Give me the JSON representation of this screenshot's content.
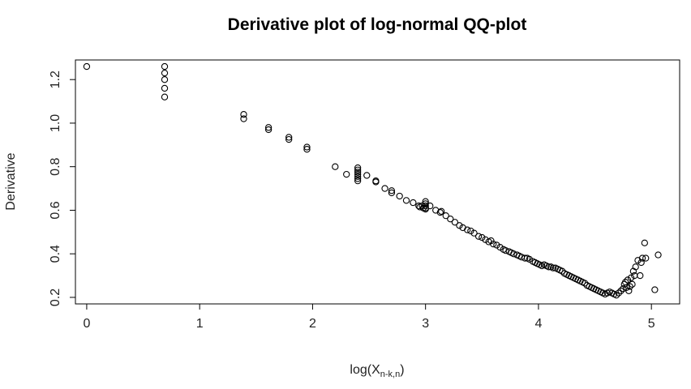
{
  "chart_data": {
    "type": "scatter",
    "title": "Derivative plot of log-normal QQ-plot",
    "xlabel": {
      "base": "log(X",
      "subscript": "n-k,n",
      "close": ")"
    },
    "ylabel": "Derivative",
    "xlim": [
      -0.1,
      5.25
    ],
    "ylim": [
      0.17,
      1.29
    ],
    "xticks": [
      0,
      1,
      2,
      3,
      4,
      5
    ],
    "yticks": [
      0.2,
      0.4,
      0.6,
      0.8,
      1.0,
      1.2
    ],
    "xtick_labels": [
      "0",
      "1",
      "2",
      "3",
      "4",
      "5"
    ],
    "ytick_labels": [
      "0.2",
      "0.4",
      "0.6",
      "0.8",
      "1.0",
      "1.2"
    ],
    "marker": "open-circle",
    "grid": false,
    "points": [
      [
        0.0,
        1.26
      ],
      [
        0.69,
        1.26
      ],
      [
        0.69,
        1.23
      ],
      [
        0.69,
        1.2
      ],
      [
        0.69,
        1.16
      ],
      [
        0.69,
        1.12
      ],
      [
        1.39,
        1.04
      ],
      [
        1.39,
        1.02
      ],
      [
        1.61,
        0.98
      ],
      [
        1.61,
        0.97
      ],
      [
        1.79,
        0.935
      ],
      [
        1.79,
        0.925
      ],
      [
        1.95,
        0.89
      ],
      [
        1.95,
        0.88
      ],
      [
        2.2,
        0.8
      ],
      [
        2.3,
        0.765
      ],
      [
        2.4,
        0.795
      ],
      [
        2.4,
        0.785
      ],
      [
        2.4,
        0.775
      ],
      [
        2.4,
        0.765
      ],
      [
        2.4,
        0.755
      ],
      [
        2.4,
        0.745
      ],
      [
        2.4,
        0.735
      ],
      [
        2.48,
        0.76
      ],
      [
        2.56,
        0.735
      ],
      [
        2.56,
        0.73
      ],
      [
        2.64,
        0.7
      ],
      [
        2.7,
        0.69
      ],
      [
        2.7,
        0.68
      ],
      [
        2.77,
        0.665
      ],
      [
        2.83,
        0.645
      ],
      [
        2.89,
        0.635
      ],
      [
        2.94,
        0.62
      ],
      [
        2.95,
        0.615
      ],
      [
        2.97,
        0.62
      ],
      [
        2.98,
        0.61
      ],
      [
        3.0,
        0.64
      ],
      [
        3.0,
        0.63
      ],
      [
        3.0,
        0.62
      ],
      [
        3.0,
        0.61
      ],
      [
        3.0,
        0.605
      ],
      [
        3.04,
        0.62
      ],
      [
        3.09,
        0.6
      ],
      [
        3.13,
        0.59
      ],
      [
        3.14,
        0.595
      ],
      [
        3.18,
        0.575
      ],
      [
        3.22,
        0.56
      ],
      [
        3.26,
        0.545
      ],
      [
        3.3,
        0.53
      ],
      [
        3.33,
        0.52
      ],
      [
        3.37,
        0.51
      ],
      [
        3.4,
        0.505
      ],
      [
        3.43,
        0.495
      ],
      [
        3.47,
        0.48
      ],
      [
        3.5,
        0.475
      ],
      [
        3.53,
        0.465
      ],
      [
        3.56,
        0.455
      ],
      [
        3.58,
        0.46
      ],
      [
        3.6,
        0.445
      ],
      [
        3.63,
        0.44
      ],
      [
        3.66,
        0.43
      ],
      [
        3.69,
        0.42
      ],
      [
        3.71,
        0.415
      ],
      [
        3.74,
        0.41
      ],
      [
        3.76,
        0.405
      ],
      [
        3.78,
        0.4
      ],
      [
        3.81,
        0.395
      ],
      [
        3.83,
        0.39
      ],
      [
        3.85,
        0.385
      ],
      [
        3.88,
        0.38
      ],
      [
        3.9,
        0.38
      ],
      [
        3.92,
        0.375
      ],
      [
        3.95,
        0.365
      ],
      [
        3.97,
        0.36
      ],
      [
        3.99,
        0.355
      ],
      [
        4.01,
        0.35
      ],
      [
        4.03,
        0.345
      ],
      [
        4.05,
        0.35
      ],
      [
        4.07,
        0.345
      ],
      [
        4.09,
        0.34
      ],
      [
        4.11,
        0.34
      ],
      [
        4.13,
        0.335
      ],
      [
        4.15,
        0.335
      ],
      [
        4.17,
        0.33
      ],
      [
        4.19,
        0.325
      ],
      [
        4.21,
        0.32
      ],
      [
        4.23,
        0.31
      ],
      [
        4.25,
        0.305
      ],
      [
        4.27,
        0.3
      ],
      [
        4.29,
        0.295
      ],
      [
        4.31,
        0.29
      ],
      [
        4.33,
        0.285
      ],
      [
        4.35,
        0.28
      ],
      [
        4.37,
        0.275
      ],
      [
        4.39,
        0.27
      ],
      [
        4.41,
        0.265
      ],
      [
        4.43,
        0.255
      ],
      [
        4.45,
        0.25
      ],
      [
        4.47,
        0.245
      ],
      [
        4.49,
        0.24
      ],
      [
        4.51,
        0.235
      ],
      [
        4.53,
        0.23
      ],
      [
        4.55,
        0.225
      ],
      [
        4.57,
        0.22
      ],
      [
        4.59,
        0.215
      ],
      [
        4.61,
        0.22
      ],
      [
        4.63,
        0.225
      ],
      [
        4.65,
        0.22
      ],
      [
        4.67,
        0.215
      ],
      [
        4.69,
        0.21
      ],
      [
        4.71,
        0.22
      ],
      [
        4.73,
        0.23
      ],
      [
        4.75,
        0.24
      ],
      [
        4.76,
        0.26
      ],
      [
        4.77,
        0.27
      ],
      [
        4.78,
        0.245
      ],
      [
        4.79,
        0.28
      ],
      [
        4.8,
        0.23
      ],
      [
        4.81,
        0.25
      ],
      [
        4.82,
        0.29
      ],
      [
        4.83,
        0.26
      ],
      [
        4.84,
        0.32
      ],
      [
        4.85,
        0.3
      ],
      [
        4.86,
        0.34
      ],
      [
        4.88,
        0.37
      ],
      [
        4.9,
        0.3
      ],
      [
        4.91,
        0.36
      ],
      [
        4.92,
        0.38
      ],
      [
        4.94,
        0.45
      ],
      [
        4.95,
        0.38
      ],
      [
        5.03,
        0.235
      ],
      [
        5.06,
        0.395
      ]
    ]
  }
}
